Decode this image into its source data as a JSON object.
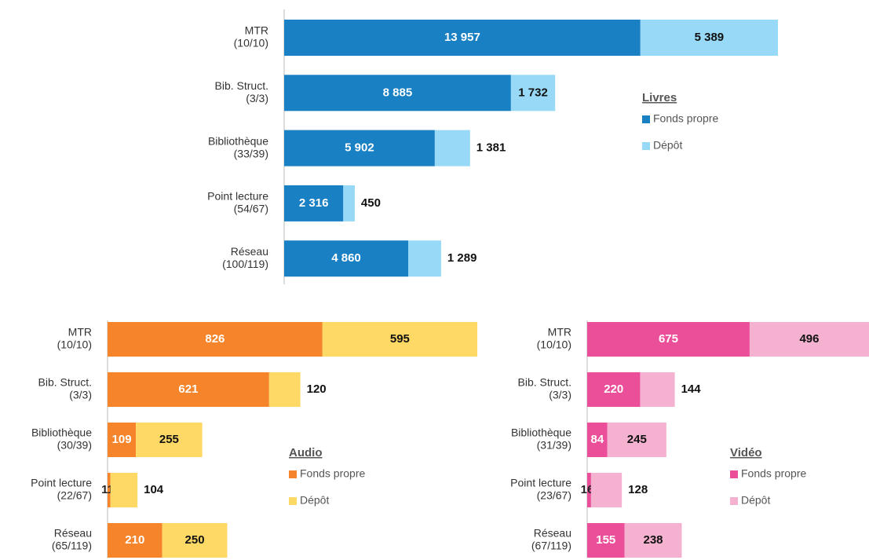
{
  "chart_data": [
    {
      "type": "bar",
      "orientation": "horizontal",
      "stacked": true,
      "legend_title": "Livres",
      "categories": [
        [
          "MTR",
          "(10/10)"
        ],
        [
          "Bib. Struct.",
          "(3/3)"
        ],
        [
          "Bibliothèque",
          "(33/39)"
        ],
        [
          "Point lecture",
          "(54/67)"
        ],
        [
          "Réseau",
          "(100/119)"
        ]
      ],
      "series": [
        {
          "name": "Fonds propre",
          "color": "#1a80c4",
          "values": [
            13957,
            8885,
            5902,
            2316,
            4860
          ],
          "value_labels": [
            "13 957",
            "8 885",
            "5 902",
            "2 316",
            "4 860"
          ]
        },
        {
          "name": "Dépôt",
          "color": "#97d9f6",
          "values": [
            5389,
            1732,
            1381,
            450,
            1289
          ],
          "value_labels": [
            "5 389",
            "1 732",
            "1 381",
            "450",
            "1 289"
          ]
        }
      ]
    },
    {
      "type": "bar",
      "orientation": "horizontal",
      "stacked": true,
      "legend_title": "Audio",
      "categories": [
        [
          "MTR",
          "(10/10)"
        ],
        [
          "Bib. Struct.",
          "(3/3)"
        ],
        [
          "Bibliothèque",
          "(30/39)"
        ],
        [
          "Point lecture",
          "(22/67)"
        ],
        [
          "Réseau",
          "(65/119)"
        ]
      ],
      "series": [
        {
          "name": "Fonds propre",
          "color": "#f5842a",
          "values": [
            826,
            621,
            109,
            11,
            210
          ]
        },
        {
          "name": "Dépôt",
          "color": "#fed966",
          "values": [
            595,
            120,
            255,
            104,
            250
          ]
        }
      ]
    },
    {
      "type": "bar",
      "orientation": "horizontal",
      "stacked": true,
      "legend_title": "Vidéo",
      "categories": [
        [
          "MTR",
          "(10/10)"
        ],
        [
          "Bib. Struct.",
          "(3/3)"
        ],
        [
          "Bibliothèque",
          "(31/39)"
        ],
        [
          "Point lecture",
          "(23/67)"
        ],
        [
          "Réseau",
          "(67/119)"
        ]
      ],
      "series": [
        {
          "name": "Fonds propre",
          "color": "#ec4f99",
          "values": [
            675,
            220,
            84,
            16,
            155
          ]
        },
        {
          "name": "Dépôt",
          "color": "#f4b1d0",
          "values": [
            496,
            144,
            245,
            128,
            238
          ]
        }
      ]
    }
  ]
}
